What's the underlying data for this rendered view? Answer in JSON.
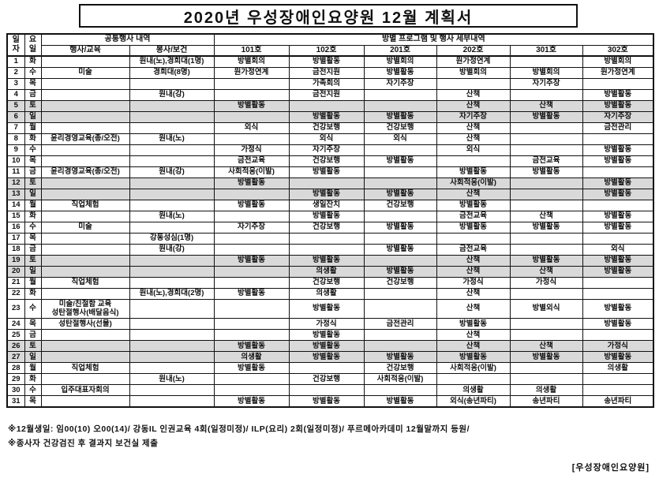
{
  "title": "2020년  우성장애인요양원  12월 계획서",
  "table": {
    "header": {
      "date_col": "일\n자",
      "dow_col": "요\n일",
      "common_group": "공통행사 내역",
      "room_group": "방별 프로그램 및 행사 세부내역",
      "sub_columns": [
        "행사/교육",
        "봉사/보건",
        "101호",
        "102호",
        "201호",
        "202호",
        "301호",
        "302호"
      ]
    },
    "rows": [
      {
        "date": "1",
        "dow": "화",
        "cells": [
          "",
          "원내(노),경희대(1명)",
          "방별회의",
          "방별활동",
          "방별회의",
          "원가정연계",
          "",
          "방별회의"
        ]
      },
      {
        "date": "2",
        "dow": "수",
        "cells": [
          "미술",
          "경희대(8명)",
          "원가정연계",
          "금전지원",
          "방별활동",
          "방별회의",
          "방별회의",
          "원가정연계"
        ]
      },
      {
        "date": "3",
        "dow": "목",
        "cells": [
          "",
          "",
          "",
          "가족회의",
          "자기주장",
          "",
          "자기주장",
          ""
        ]
      },
      {
        "date": "4",
        "dow": "금",
        "cells": [
          "",
          "원내(강)",
          "",
          "금전지원",
          "",
          "산책",
          "",
          "방별활동"
        ]
      },
      {
        "date": "5",
        "dow": "토",
        "cells": [
          "",
          "",
          "방별활동",
          "",
          "",
          "산책",
          "산책",
          "방별활동"
        ]
      },
      {
        "date": "6",
        "dow": "일",
        "cells": [
          "",
          "",
          "",
          "방별활동",
          "방별활동",
          "자기주장",
          "방별활동",
          "자기주장"
        ]
      },
      {
        "date": "7",
        "dow": "월",
        "cells": [
          "",
          "",
          "외식",
          "건강보행",
          "건강보행",
          "산책",
          "",
          "금전관리"
        ]
      },
      {
        "date": "8",
        "dow": "화",
        "cells": [
          "윤리경영교육(총/오전)",
          "원내(노)",
          "",
          "외식",
          "외식",
          "산책",
          "",
          ""
        ]
      },
      {
        "date": "9",
        "dow": "수",
        "cells": [
          "",
          "",
          "가정식",
          "자기주장",
          "",
          "외식",
          "",
          "방별활동"
        ]
      },
      {
        "date": "10",
        "dow": "목",
        "cells": [
          "",
          "",
          "금전교육",
          "건강보행",
          "방별활동",
          "",
          "금전교육",
          "방별활동"
        ]
      },
      {
        "date": "11",
        "dow": "금",
        "cells": [
          "윤리경영교육(총/오전)",
          "원내(강)",
          "사회적응(이발)",
          "방별활동",
          "",
          "방별활동",
          "방별활동",
          ""
        ]
      },
      {
        "date": "12",
        "dow": "토",
        "cells": [
          "",
          "",
          "방별활동",
          "",
          "",
          "사회적응(이발)",
          "",
          "방별활동"
        ]
      },
      {
        "date": "13",
        "dow": "일",
        "cells": [
          "",
          "",
          "",
          "방별활동",
          "방별활동",
          "산책",
          "",
          "방별활동"
        ]
      },
      {
        "date": "14",
        "dow": "월",
        "cells": [
          "직업체험",
          "",
          "방별활동",
          "생일잔치",
          "건강보행",
          "방별활동",
          "",
          ""
        ]
      },
      {
        "date": "15",
        "dow": "화",
        "cells": [
          "",
          "원내(노)",
          "",
          "방별활동",
          "",
          "금전교육",
          "산책",
          "방별활동"
        ]
      },
      {
        "date": "16",
        "dow": "수",
        "cells": [
          "미술",
          "",
          "자기주장",
          "건강보행",
          "방별활동",
          "방별활동",
          "방별활동",
          "방별활동"
        ]
      },
      {
        "date": "17",
        "dow": "목",
        "cells": [
          "",
          "강동성심(1명)",
          "",
          "",
          "",
          "",
          "",
          ""
        ]
      },
      {
        "date": "18",
        "dow": "금",
        "cells": [
          "",
          "원내(강)",
          "",
          "",
          "방별활동",
          "금전교육",
          "",
          "외식"
        ]
      },
      {
        "date": "19",
        "dow": "토",
        "cells": [
          "",
          "",
          "방별활동",
          "방별활동",
          "",
          "산책",
          "방별활동",
          "방별활동"
        ]
      },
      {
        "date": "20",
        "dow": "일",
        "cells": [
          "",
          "",
          "",
          "의생활",
          "방별활동",
          "산책",
          "산책",
          "방별활동"
        ]
      },
      {
        "date": "21",
        "dow": "월",
        "cells": [
          "직업체험",
          "",
          "",
          "건강보행",
          "건강보행",
          "가정식",
          "가정식",
          ""
        ]
      },
      {
        "date": "22",
        "dow": "화",
        "cells": [
          "",
          "원내(노),경희대(2명)",
          "방별활동",
          "의생활",
          "",
          "산책",
          "",
          ""
        ]
      },
      {
        "date": "23",
        "dow": "수",
        "cells": [
          "미술/친절함 교육\n성탄절행사(배달음식)",
          "",
          "",
          "방별활동",
          "",
          "산책",
          "방별외식",
          "방별활동"
        ]
      },
      {
        "date": "24",
        "dow": "목",
        "cells": [
          "성탄절행사(선물)",
          "",
          "",
          "가정식",
          "금전관리",
          "방별활동",
          "",
          "방별활동"
        ]
      },
      {
        "date": "25",
        "dow": "금",
        "cells": [
          "",
          "",
          "",
          "방별활동",
          "",
          "산책",
          "",
          ""
        ]
      },
      {
        "date": "26",
        "dow": "토",
        "cells": [
          "",
          "",
          "방별활동",
          "방별활동",
          "",
          "산책",
          "산책",
          "가정식"
        ]
      },
      {
        "date": "27",
        "dow": "일",
        "cells": [
          "",
          "",
          "의생활",
          "방별활동",
          "방별활동",
          "방별활동",
          "방별활동",
          "방별활동"
        ]
      },
      {
        "date": "28",
        "dow": "월",
        "cells": [
          "직업체험",
          "",
          "방별활동",
          "",
          "건강보행",
          "사회적응(이발)",
          "",
          "의생활"
        ]
      },
      {
        "date": "29",
        "dow": "화",
        "cells": [
          "",
          "원내(노)",
          "",
          "건강보행",
          "사회적응(이발)",
          "",
          "",
          ""
        ]
      },
      {
        "date": "30",
        "dow": "수",
        "cells": [
          "입주대표자회의",
          "",
          "",
          "",
          "",
          "의생활",
          "의생활",
          ""
        ]
      },
      {
        "date": "31",
        "dow": "목",
        "cells": [
          "",
          "",
          "방별활동",
          "방별활동",
          "방별활동",
          "외식(송년파티)",
          "송년파티",
          "송년파티"
        ]
      }
    ]
  },
  "notes": [
    "※12월생일: 임00(10)  오00(14)/  강동IL 인권교육  4회(일정미정)/  ILP(요리)  2회(일정미정)/  푸르메아카데미  12월말까지  등원/",
    "※종사자  건강검진  후  결과지  보건실  제출"
  ],
  "footer_signature": "[우성장애인요양원]",
  "colors": {
    "weekend_row": "#d9d9d9",
    "border": "#111111"
  }
}
